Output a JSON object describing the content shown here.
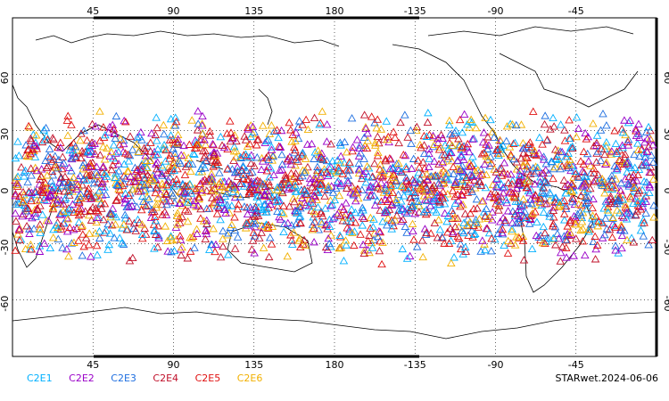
{
  "map": {
    "lon_top_ticks": [
      "45",
      "90",
      "135",
      "180",
      "-135",
      "-90",
      "-45"
    ],
    "lon_bottom_ticks": [
      "45",
      "90",
      "135",
      "180",
      "-135",
      "-90",
      "-45"
    ],
    "lat_ticks_left": [
      "60",
      "30",
      "0",
      "-30",
      "-60"
    ],
    "lat_ticks_right": [
      "60",
      "30",
      "0",
      "-30",
      "-60"
    ],
    "lon_range": [
      0,
      360
    ],
    "lat_range": [
      -90,
      90
    ],
    "projection": "equirectangular centered on 180",
    "grid": "dotted every 45° lon, 30° lat",
    "marker": "open triangle",
    "coastline_color": "#000000"
  },
  "legend": [
    {
      "label": "C2E1",
      "color": "#00b0ff"
    },
    {
      "label": "C2E2",
      "color": "#9a00c8"
    },
    {
      "label": "C2E3",
      "color": "#1f6fe0"
    },
    {
      "label": "C2E4",
      "color": "#c0102a"
    },
    {
      "label": "C2E5",
      "color": "#e01010"
    },
    {
      "label": "C2E6",
      "color": "#f2b000"
    }
  ],
  "stamp": "STARwet.2024-06-06",
  "chart_data": {
    "type": "scatter",
    "title": "",
    "xlabel": "",
    "ylabel": "",
    "xlim": [
      0,
      360
    ],
    "ylim": [
      -90,
      90
    ],
    "series": [
      {
        "name": "C2E1",
        "point_count_estimate": 700,
        "lat_band": [
          -42,
          42
        ]
      },
      {
        "name": "C2E2",
        "point_count_estimate": 700,
        "lat_band": [
          -42,
          42
        ]
      },
      {
        "name": "C2E3",
        "point_count_estimate": 700,
        "lat_band": [
          -42,
          42
        ]
      },
      {
        "name": "C2E4",
        "point_count_estimate": 700,
        "lat_band": [
          -42,
          42
        ]
      },
      {
        "name": "C2E5",
        "point_count_estimate": 700,
        "lat_band": [
          -42,
          42
        ]
      },
      {
        "name": "C2E6",
        "point_count_estimate": 700,
        "lat_band": [
          -42,
          42
        ]
      }
    ]
  }
}
